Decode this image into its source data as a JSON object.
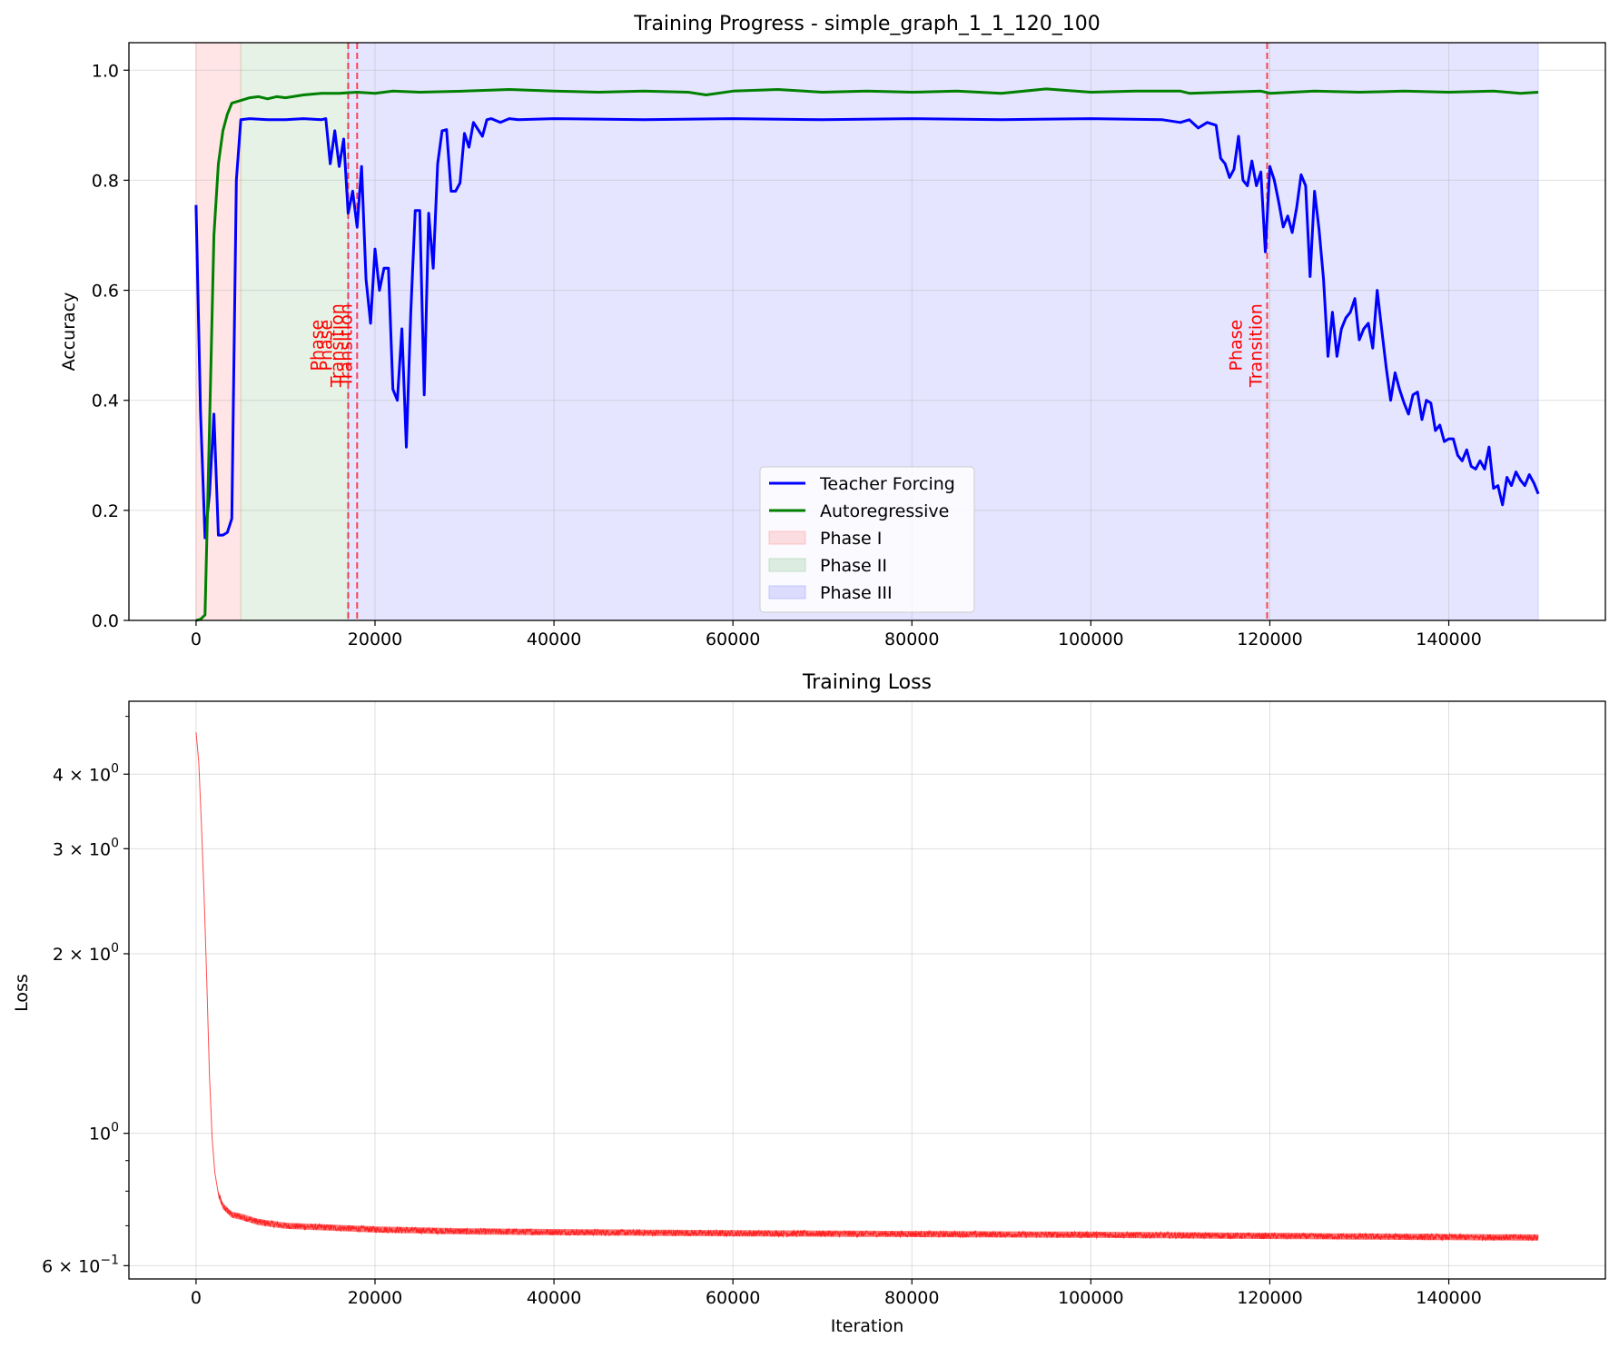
{
  "chart_data": [
    {
      "type": "line",
      "title": "Training Progress - simple_graph_1_1_120_100",
      "xlabel": "",
      "ylabel": "Accuracy",
      "xlim": [
        -7500,
        157500
      ],
      "ylim": [
        0.0,
        1.05
      ],
      "x_ticks": [
        0,
        20000,
        40000,
        60000,
        80000,
        100000,
        120000,
        140000
      ],
      "y_ticks": [
        0.0,
        0.2,
        0.4,
        0.6,
        0.8,
        1.0
      ],
      "grid": true,
      "legend_position": "lower-center",
      "phases": [
        {
          "name": "Phase I",
          "x_start": 0,
          "x_end": 5000,
          "color": "#ff9999"
        },
        {
          "name": "Phase II",
          "x_start": 5000,
          "x_end": 17000,
          "color": "#99cc99"
        },
        {
          "name": "Phase III",
          "x_start": 17000,
          "x_end": 150000,
          "color": "#9999ff"
        }
      ],
      "transitions": [
        {
          "x": 17000,
          "label": "Phase\nTransition"
        },
        {
          "x": 18000,
          "label": "Phase\nTransition"
        },
        {
          "x": 119700,
          "label": "Phase\nTransition"
        }
      ],
      "series": [
        {
          "name": "Teacher Forcing",
          "color": "#0000ff",
          "points": [
            [
              0,
              0.755
            ],
            [
              500,
              0.38
            ],
            [
              1000,
              0.15
            ],
            [
              1500,
              0.23
            ],
            [
              2000,
              0.375
            ],
            [
              2500,
              0.155
            ],
            [
              3000,
              0.155
            ],
            [
              3500,
              0.16
            ],
            [
              4000,
              0.185
            ],
            [
              4500,
              0.8
            ],
            [
              5000,
              0.91
            ],
            [
              6000,
              0.912
            ],
            [
              8000,
              0.91
            ],
            [
              10000,
              0.91
            ],
            [
              12000,
              0.912
            ],
            [
              14000,
              0.91
            ],
            [
              14500,
              0.912
            ],
            [
              15000,
              0.83
            ],
            [
              15500,
              0.89
            ],
            [
              16000,
              0.825
            ],
            [
              16500,
              0.875
            ],
            [
              17000,
              0.74
            ],
            [
              17500,
              0.78
            ],
            [
              18000,
              0.715
            ],
            [
              18500,
              0.825
            ],
            [
              19000,
              0.62
            ],
            [
              19500,
              0.54
            ],
            [
              20000,
              0.675
            ],
            [
              20500,
              0.6
            ],
            [
              21000,
              0.64
            ],
            [
              21500,
              0.64
            ],
            [
              22000,
              0.42
            ],
            [
              22500,
              0.4
            ],
            [
              23000,
              0.53
            ],
            [
              23500,
              0.315
            ],
            [
              24000,
              0.56
            ],
            [
              24500,
              0.745
            ],
            [
              25000,
              0.745
            ],
            [
              25500,
              0.41
            ],
            [
              26000,
              0.74
            ],
            [
              26500,
              0.64
            ],
            [
              27000,
              0.83
            ],
            [
              27500,
              0.89
            ],
            [
              28000,
              0.892
            ],
            [
              28500,
              0.78
            ],
            [
              29000,
              0.78
            ],
            [
              29500,
              0.795
            ],
            [
              30000,
              0.885
            ],
            [
              30500,
              0.86
            ],
            [
              31000,
              0.905
            ],
            [
              32000,
              0.88
            ],
            [
              32500,
              0.91
            ],
            [
              33000,
              0.912
            ],
            [
              34000,
              0.905
            ],
            [
              35000,
              0.912
            ],
            [
              36000,
              0.91
            ],
            [
              40000,
              0.912
            ],
            [
              50000,
              0.91
            ],
            [
              60000,
              0.912
            ],
            [
              70000,
              0.91
            ],
            [
              80000,
              0.912
            ],
            [
              90000,
              0.91
            ],
            [
              100000,
              0.912
            ],
            [
              108000,
              0.91
            ],
            [
              110000,
              0.905
            ],
            [
              111000,
              0.91
            ],
            [
              112000,
              0.895
            ],
            [
              113000,
              0.905
            ],
            [
              114000,
              0.9
            ],
            [
              114500,
              0.84
            ],
            [
              115000,
              0.83
            ],
            [
              115500,
              0.805
            ],
            [
              116000,
              0.82
            ],
            [
              116500,
              0.88
            ],
            [
              117000,
              0.8
            ],
            [
              117500,
              0.79
            ],
            [
              118000,
              0.835
            ],
            [
              118500,
              0.79
            ],
            [
              119000,
              0.815
            ],
            [
              119500,
              0.67
            ],
            [
              120000,
              0.825
            ],
            [
              120500,
              0.8
            ],
            [
              121000,
              0.76
            ],
            [
              121500,
              0.715
            ],
            [
              122000,
              0.735
            ],
            [
              122500,
              0.705
            ],
            [
              123000,
              0.75
            ],
            [
              123500,
              0.81
            ],
            [
              124000,
              0.79
            ],
            [
              124500,
              0.625
            ],
            [
              125000,
              0.78
            ],
            [
              125500,
              0.71
            ],
            [
              126000,
              0.62
            ],
            [
              126500,
              0.48
            ],
            [
              127000,
              0.56
            ],
            [
              127500,
              0.48
            ],
            [
              128000,
              0.53
            ],
            [
              128500,
              0.55
            ],
            [
              129000,
              0.56
            ],
            [
              129500,
              0.585
            ],
            [
              130000,
              0.51
            ],
            [
              130500,
              0.53
            ],
            [
              131000,
              0.54
            ],
            [
              131500,
              0.495
            ],
            [
              132000,
              0.6
            ],
            [
              132500,
              0.53
            ],
            [
              133000,
              0.46
            ],
            [
              133500,
              0.4
            ],
            [
              134000,
              0.45
            ],
            [
              134500,
              0.42
            ],
            [
              135000,
              0.395
            ],
            [
              135500,
              0.375
            ],
            [
              136000,
              0.41
            ],
            [
              136500,
              0.415
            ],
            [
              137000,
              0.365
            ],
            [
              137500,
              0.4
            ],
            [
              138000,
              0.395
            ],
            [
              138500,
              0.345
            ],
            [
              139000,
              0.355
            ],
            [
              139500,
              0.325
            ],
            [
              140000,
              0.33
            ],
            [
              140500,
              0.33
            ],
            [
              141000,
              0.3
            ],
            [
              141500,
              0.29
            ],
            [
              142000,
              0.31
            ],
            [
              142500,
              0.28
            ],
            [
              143000,
              0.275
            ],
            [
              143500,
              0.29
            ],
            [
              144000,
              0.275
            ],
            [
              144500,
              0.315
            ],
            [
              145000,
              0.24
            ],
            [
              145500,
              0.245
            ],
            [
              146000,
              0.21
            ],
            [
              146500,
              0.26
            ],
            [
              147000,
              0.245
            ],
            [
              147500,
              0.27
            ],
            [
              148000,
              0.255
            ],
            [
              148500,
              0.245
            ],
            [
              149000,
              0.265
            ],
            [
              149500,
              0.25
            ],
            [
              150000,
              0.23
            ]
          ]
        },
        {
          "name": "Autoregressive",
          "color": "#008000",
          "points": [
            [
              0,
              0.0
            ],
            [
              500,
              0.002
            ],
            [
              1000,
              0.01
            ],
            [
              1500,
              0.35
            ],
            [
              2000,
              0.7
            ],
            [
              2500,
              0.83
            ],
            [
              3000,
              0.89
            ],
            [
              3500,
              0.92
            ],
            [
              4000,
              0.94
            ],
            [
              5000,
              0.945
            ],
            [
              6000,
              0.95
            ],
            [
              7000,
              0.952
            ],
            [
              8000,
              0.948
            ],
            [
              9000,
              0.952
            ],
            [
              10000,
              0.95
            ],
            [
              12000,
              0.955
            ],
            [
              14000,
              0.958
            ],
            [
              16000,
              0.958
            ],
            [
              18000,
              0.96
            ],
            [
              20000,
              0.958
            ],
            [
              22000,
              0.962
            ],
            [
              25000,
              0.96
            ],
            [
              30000,
              0.962
            ],
            [
              35000,
              0.965
            ],
            [
              40000,
              0.962
            ],
            [
              45000,
              0.96
            ],
            [
              50000,
              0.962
            ],
            [
              55000,
              0.96
            ],
            [
              57000,
              0.955
            ],
            [
              60000,
              0.962
            ],
            [
              65000,
              0.965
            ],
            [
              70000,
              0.96
            ],
            [
              75000,
              0.962
            ],
            [
              80000,
              0.96
            ],
            [
              85000,
              0.962
            ],
            [
              90000,
              0.958
            ],
            [
              95000,
              0.966
            ],
            [
              100000,
              0.96
            ],
            [
              105000,
              0.962
            ],
            [
              110000,
              0.962
            ],
            [
              111000,
              0.958
            ],
            [
              115000,
              0.96
            ],
            [
              119000,
              0.962
            ],
            [
              120000,
              0.958
            ],
            [
              125000,
              0.962
            ],
            [
              130000,
              0.96
            ],
            [
              135000,
              0.962
            ],
            [
              140000,
              0.96
            ],
            [
              145000,
              0.962
            ],
            [
              148000,
              0.958
            ],
            [
              150000,
              0.96
            ]
          ]
        }
      ],
      "legend_entries": [
        "Teacher Forcing",
        "Autoregressive",
        "Phase I",
        "Phase II",
        "Phase III"
      ]
    },
    {
      "type": "line",
      "title": "Training Loss",
      "xlabel": "Iteration",
      "ylabel": "Loss",
      "yscale": "log",
      "xlim": [
        -7500,
        157500
      ],
      "ylim": [
        0.57,
        5.3
      ],
      "x_ticks": [
        0,
        20000,
        40000,
        60000,
        80000,
        100000,
        120000,
        140000
      ],
      "y_ticks": [
        {
          "value": 0.6,
          "mantissa": "6",
          "exponent": "−1"
        },
        {
          "value": 1.0,
          "mantissa": "",
          "exponent": "0"
        },
        {
          "value": 2.0,
          "mantissa": "2",
          "exponent": "0"
        },
        {
          "value": 3.0,
          "mantissa": "3",
          "exponent": "0"
        },
        {
          "value": 4.0,
          "mantissa": "4",
          "exponent": "0"
        }
      ],
      "grid": true,
      "series": [
        {
          "color": "#ff0000",
          "points": [
            [
              0,
              4.7
            ],
            [
              300,
              4.2
            ],
            [
              600,
              3.3
            ],
            [
              900,
              2.5
            ],
            [
              1200,
              1.8
            ],
            [
              1500,
              1.25
            ],
            [
              1800,
              0.98
            ],
            [
              2100,
              0.86
            ],
            [
              2500,
              0.79
            ],
            [
              3000,
              0.755
            ],
            [
              4000,
              0.73
            ],
            [
              5000,
              0.725
            ],
            [
              7000,
              0.71
            ],
            [
              10000,
              0.7
            ],
            [
              15000,
              0.695
            ],
            [
              20000,
              0.69
            ],
            [
              30000,
              0.685
            ],
            [
              40000,
              0.683
            ],
            [
              60000,
              0.68
            ],
            [
              80000,
              0.678
            ],
            [
              100000,
              0.676
            ],
            [
              120000,
              0.673
            ],
            [
              140000,
              0.67
            ],
            [
              150000,
              0.669
            ]
          ],
          "noise_band": 0.012
        }
      ]
    }
  ]
}
